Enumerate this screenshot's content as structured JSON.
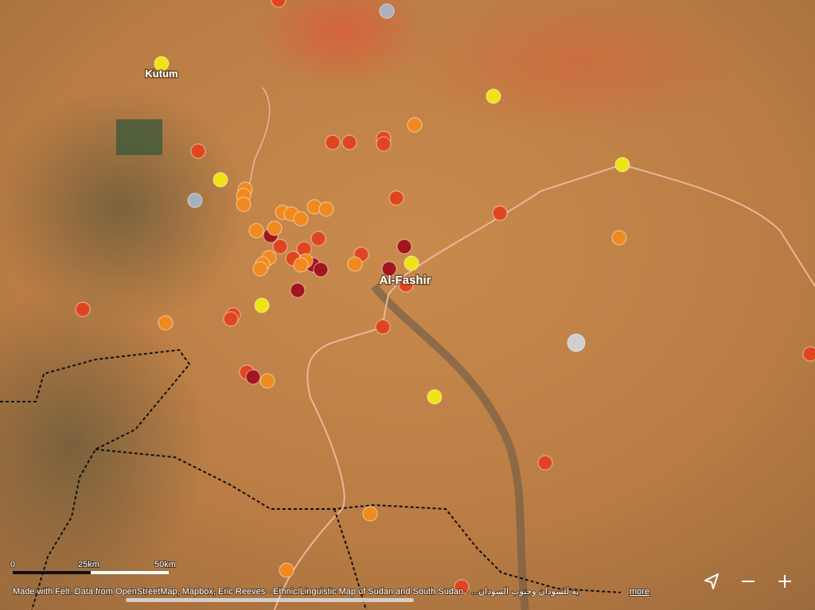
{
  "places": [
    {
      "label": "Kutum"
    },
    {
      "label": "Al-Fashir"
    }
  ],
  "scale_bar": {
    "labels": [
      "0",
      "25km",
      "50km"
    ]
  },
  "attribution": {
    "text": "Made with Felt. Data from OpenStreetMap, Mapbox, Eric Reeves - Ethnic/Linguistic Map of Sudan and South Sudan - ...ية للسودان وجنوب السودان",
    "link": "more"
  }
}
